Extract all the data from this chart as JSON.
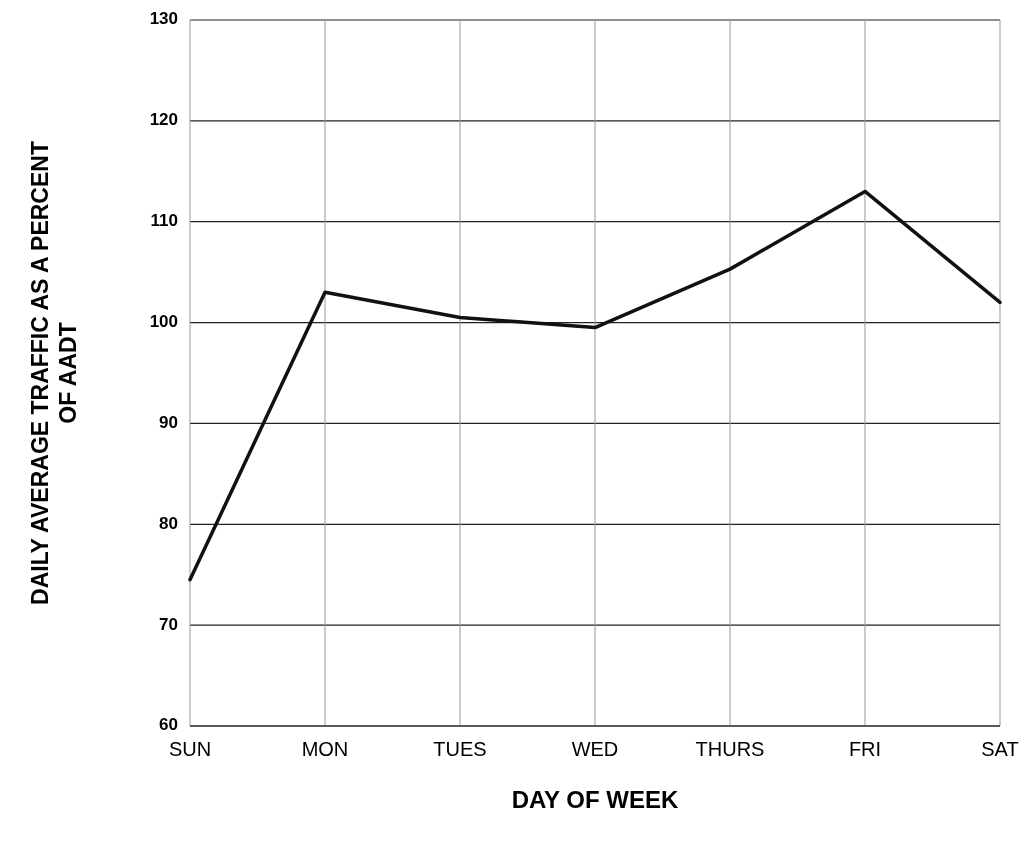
{
  "chart_data": {
    "type": "line",
    "categories": [
      "SUN",
      "MON",
      "TUES",
      "WED",
      "THURS",
      "FRI",
      "SAT"
    ],
    "series": [
      {
        "color": "#111111",
        "values": [
          74.5,
          103,
          100.5,
          99.5,
          105.3,
          113,
          102
        ]
      }
    ],
    "xlabel": "DAY OF WEEK",
    "ylabel": "DAILY AVERAGE TRAFFIC AS A PERCENT OF AADT",
    "ylim": [
      60,
      130
    ],
    "yticks": [
      60,
      70,
      80,
      90,
      100,
      110,
      120,
      130
    ],
    "grid": true,
    "marker": "none",
    "line_style": "solid"
  }
}
